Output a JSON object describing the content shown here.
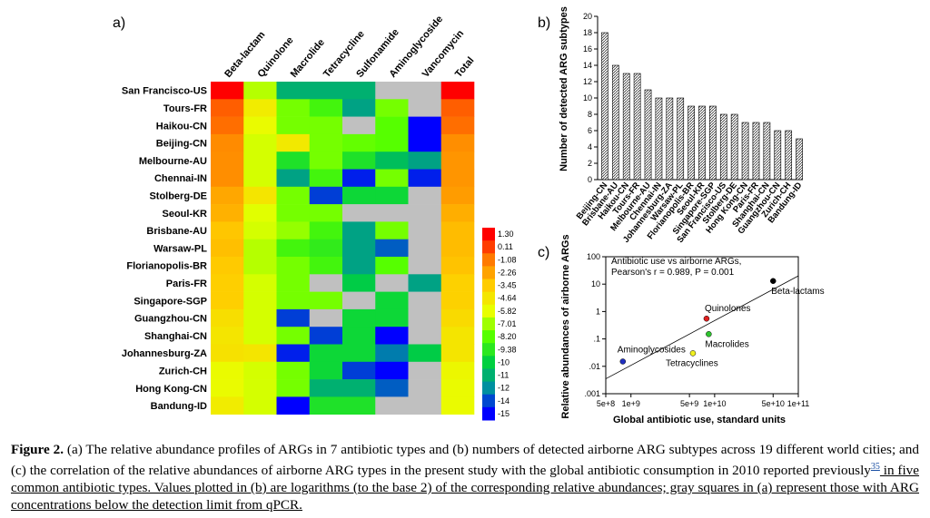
{
  "panel_labels": {
    "a": "a)",
    "b": "b)",
    "c": "c)"
  },
  "chart_data": [
    {
      "type": "heatmap",
      "columns": [
        "Beta-lactam",
        "Quinolone",
        "Macrolide",
        "Tetracycline",
        "Sulfonamide",
        "Aminoglycoside",
        "Vancomycin",
        "Total"
      ],
      "rows": [
        "San Francisco-US",
        "Tours-FR",
        "Haikou-CN",
        "Beijing-CN",
        "Melbourne-AU",
        "Chennai-IN",
        "Stolberg-DE",
        "Seoul-KR",
        "Brisbane-AU",
        "Warsaw-PL",
        "Florianopolis-BR",
        "Paris-FR",
        "Singapore-SGP",
        "Guangzhou-CN",
        "Shanghai-CN",
        "Johannesburg-ZA",
        "Zurich-CH",
        "Hong Kong-CN",
        "Bandung-ID"
      ],
      "values": [
        [
          1.3,
          -6.5,
          -11.5,
          -11.5,
          -11.5,
          null,
          null,
          1.3
        ],
        [
          -0.5,
          -4.8,
          -7.5,
          -8.5,
          -12.0,
          -7.5,
          null,
          -0.5
        ],
        [
          -0.8,
          -5.5,
          -7.5,
          -7.5,
          null,
          -8.0,
          -15,
          -0.8
        ],
        [
          -1.5,
          -6.0,
          -4.7,
          -7.5,
          -7.8,
          -8.0,
          -15,
          -1.6
        ],
        [
          -1.6,
          -6.0,
          -9.5,
          -7.5,
          -9.5,
          -11.0,
          -12.0,
          -1.8
        ],
        [
          -1.6,
          -6.0,
          -12.0,
          -8.5,
          -14.5,
          -7.5,
          -14.5,
          -1.8
        ],
        [
          -2.3,
          -4.5,
          -7.5,
          -14.0,
          -10.0,
          -10.0,
          null,
          -2.0
        ],
        [
          -2.6,
          -5.8,
          -7.5,
          -7.5,
          null,
          null,
          null,
          -2.5
        ],
        [
          -3.2,
          -6.0,
          -7.0,
          -8.5,
          -12.0,
          -7.5,
          null,
          -2.9
        ],
        [
          -3.0,
          -6.5,
          -8.5,
          -9.0,
          -12.0,
          -13.5,
          null,
          -2.9
        ],
        [
          -3.3,
          -6.5,
          -7.5,
          -8.5,
          -12.0,
          -8.0,
          null,
          -3.1
        ],
        [
          -3.5,
          -6.0,
          -7.5,
          null,
          -10.5,
          null,
          -12.0,
          -3.6
        ],
        [
          -3.5,
          -6.0,
          -7.5,
          -7.5,
          null,
          -10.0,
          null,
          -3.6
        ],
        [
          -4.2,
          -6.0,
          -14.0,
          null,
          -10.0,
          -10.0,
          null,
          -4.0
        ],
        [
          -4.5,
          -6.0,
          -7.5,
          -14.0,
          -10.0,
          -15.0,
          null,
          -4.5
        ],
        [
          -4.3,
          -4.5,
          -14.5,
          -10.0,
          -10.0,
          -13.0,
          -10.5,
          -4.5
        ],
        [
          -5.5,
          -6.0,
          -7.5,
          -10.0,
          -14.0,
          -15.0,
          null,
          -5.3
        ],
        [
          -5.5,
          -6.0,
          -7.5,
          -11.5,
          -11.5,
          -13.5,
          null,
          -5.5
        ],
        [
          -4.8,
          -6.0,
          -15.0,
          -9.5,
          -9.5,
          null,
          null,
          -5.5
        ]
      ],
      "colorbar_ticks": [
        "1.30",
        "0.11",
        "-1.08",
        "-2.26",
        "-3.45",
        "-4.64",
        "-5.82",
        "-7.01",
        "-8.20",
        "-9.38",
        "-10",
        "-11",
        "-12",
        "-14",
        "-15"
      ],
      "colors": {
        "missing": "#c0c0c0"
      }
    },
    {
      "type": "bar",
      "categories": [
        "Beijing-CN",
        "Brisbane-AU",
        "Haikou-CN",
        "Tours-FR",
        "Melbourne-AU",
        "Chennai-IN",
        "Johannesburg-ZA",
        "Warsaw-PL",
        "Florianopolis-BR",
        "Seoul-KR",
        "Singapore-SGP",
        "San Francisco-US",
        "Stolberg-DE",
        "Hong Kong-CN",
        "Paris-FR",
        "Shanghai-CN",
        "Guangzhou-CN",
        "Zurich-CH",
        "Bandung-ID"
      ],
      "values": [
        18,
        14,
        13,
        13,
        11,
        10,
        10,
        10,
        9,
        9,
        9,
        8,
        8,
        7,
        7,
        7,
        6,
        6,
        5
      ],
      "ylabel": "Number of detected ARG subtypes",
      "ylim": [
        0,
        20
      ],
      "yticks": [
        "0",
        "2",
        "4",
        "6",
        "8",
        "10",
        "12",
        "14",
        "16",
        "18",
        "20"
      ]
    },
    {
      "type": "scatter",
      "annotation_line1": "Antibiotic use vs airborne ARGs,",
      "annotation_line2": "Pearson's r = 0.989, P = 0.001",
      "xlabel": "Global antibiotic use, standard units",
      "ylabel": "Relative abundances of airborne ARGs",
      "x_log": true,
      "y_log": true,
      "xlim": [
        500000000.0,
        100000000000.0
      ],
      "ylim": [
        0.001,
        100
      ],
      "xticks": [
        "5e+8",
        "1e+9",
        "5e+9",
        "1e+10",
        "5e+10",
        "1e+11"
      ],
      "yticks": [
        ".001",
        ".01",
        ".1",
        "1",
        "10",
        "100"
      ],
      "points": [
        {
          "name": "Beta-lactams",
          "x": 50000000000.0,
          "y": 13,
          "color": "#000000"
        },
        {
          "name": "Quinolones",
          "x": 8000000000.0,
          "y": 0.55,
          "color": "#e02020"
        },
        {
          "name": "Macrolides",
          "x": 8500000000.0,
          "y": 0.15,
          "color": "#2ec42e"
        },
        {
          "name": "Tetracyclines",
          "x": 5500000000.0,
          "y": 0.03,
          "color": "#f0f020"
        },
        {
          "name": "Aminoglycosides",
          "x": 800000000.0,
          "y": 0.015,
          "color": "#2030c0"
        }
      ],
      "fit_line": [
        {
          "x": 500000000.0,
          "y": 0.0035
        },
        {
          "x": 100000000000.0,
          "y": 20
        }
      ]
    }
  ],
  "caption": {
    "label": "Figure 2.",
    "part1": " (a) The relative abundance profiles of ARGs in 7 antibiotic types and (b) numbers of detected airborne ARG subtypes across 19 different world cities; and (c) the correlation of the relative abundances of airborne ARG types in the present study with the global antibiotic consumption in 2010 reported previously",
    "ref": "35",
    "part2": " in five common antibiotic types. Values plotted in (b) are logarithms (to the base 2) of the corresponding relative abundances; gray squares in (a) represent those with ARG concentrations below the detection limit from qPCR."
  }
}
